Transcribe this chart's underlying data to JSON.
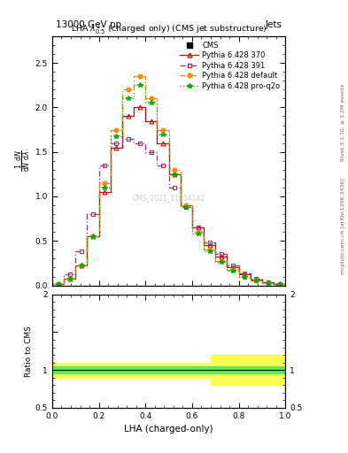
{
  "title": "13000 GeV pp",
  "title_right": "Jets",
  "subtitle": "LHA $\\lambda^{1}_{0.5}$ (charged only) (CMS jet substructure)",
  "xlabel": "LHA (charged-only)",
  "ylabel": "$\\frac{1}{\\mathrm{d}N}\\frac{\\mathrm{d}N}{\\mathrm{d}\\lambda}$",
  "ylabel_ratio": "Ratio to CMS",
  "right_label_top": "Rivet 3.1.10, ≥ 3.2M events",
  "right_label_bottom": "mcplots.cern.ch [arXiv:1306.3436]",
  "watermark": "CMS_2021_11954142",
  "lha_edges": [
    0.0,
    0.05,
    0.1,
    0.15,
    0.2,
    0.25,
    0.3,
    0.35,
    0.4,
    0.45,
    0.5,
    0.55,
    0.6,
    0.65,
    0.7,
    0.75,
    0.8,
    0.85,
    0.9,
    0.95,
    1.0
  ],
  "p370_y": [
    0.02,
    0.08,
    0.22,
    0.55,
    1.05,
    1.55,
    1.9,
    2.0,
    1.85,
    1.6,
    1.25,
    0.9,
    0.65,
    0.45,
    0.32,
    0.2,
    0.12,
    0.07,
    0.04,
    0.02
  ],
  "p391_y": [
    0.02,
    0.12,
    0.38,
    0.8,
    1.35,
    1.6,
    1.65,
    1.6,
    1.5,
    1.35,
    1.1,
    0.88,
    0.65,
    0.48,
    0.35,
    0.22,
    0.13,
    0.08,
    0.04,
    0.02
  ],
  "pdef_y": [
    0.02,
    0.08,
    0.22,
    0.55,
    1.15,
    1.75,
    2.2,
    2.35,
    2.1,
    1.75,
    1.3,
    0.9,
    0.6,
    0.4,
    0.27,
    0.17,
    0.1,
    0.06,
    0.03,
    0.02
  ],
  "pq2o_y": [
    0.02,
    0.08,
    0.22,
    0.55,
    1.1,
    1.68,
    2.1,
    2.25,
    2.05,
    1.7,
    1.25,
    0.88,
    0.58,
    0.38,
    0.26,
    0.16,
    0.1,
    0.06,
    0.03,
    0.02
  ],
  "color_cms": "#000000",
  "color_p370": "#cc0000",
  "color_p391": "#993366",
  "color_pdef": "#ff8800",
  "color_pq2o": "#00aa00",
  "ylim_main": [
    0,
    2.8
  ],
  "ylim_ratio": [
    0.5,
    2.0
  ]
}
